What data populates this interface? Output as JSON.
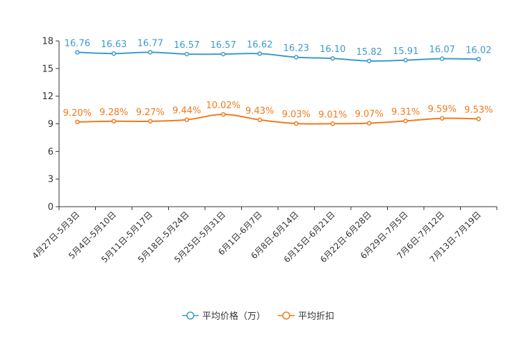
{
  "chart_data": {
    "type": "line",
    "title": "",
    "categories": [
      "4月27日-5月3日",
      "5月4日-5月10日",
      "5月11日-5月17日",
      "5月18日-5月24日",
      "5月25日-5月31日",
      "6月1日-6月7日",
      "6月8日-6月14日",
      "6月15日-6月21日",
      "6月22日-6月28日",
      "6月29日-7月5日",
      "7月6日-7月12日",
      "7月13日-7月19日"
    ],
    "ylim": [
      0,
      18
    ],
    "yticks": [
      0,
      3,
      6,
      9,
      12,
      15,
      18
    ],
    "series": [
      {
        "name": "平均价格（万）",
        "color": "#3b9bc9",
        "values": [
          16.76,
          16.63,
          16.77,
          16.57,
          16.57,
          16.62,
          16.23,
          16.1,
          15.82,
          15.91,
          16.07,
          16.02
        ],
        "labels": [
          "16.76",
          "16.63",
          "16.77",
          "16.57",
          "16.57",
          "16.62",
          "16.23",
          "16.10",
          "15.82",
          "15.91",
          "16.07",
          "16.02"
        ]
      },
      {
        "name": "平均折扣",
        "color": "#f07a1a",
        "values": [
          9.2,
          9.28,
          9.27,
          9.44,
          10.02,
          9.43,
          9.03,
          9.01,
          9.07,
          9.31,
          9.59,
          9.53
        ],
        "labels": [
          "9.20%",
          "9.28%",
          "9.27%",
          "9.44%",
          "10.02%",
          "9.43%",
          "9.03%",
          "9.01%",
          "9.07%",
          "9.31%",
          "9.59%",
          "9.53%"
        ]
      }
    ],
    "legend_position": "bottom"
  }
}
